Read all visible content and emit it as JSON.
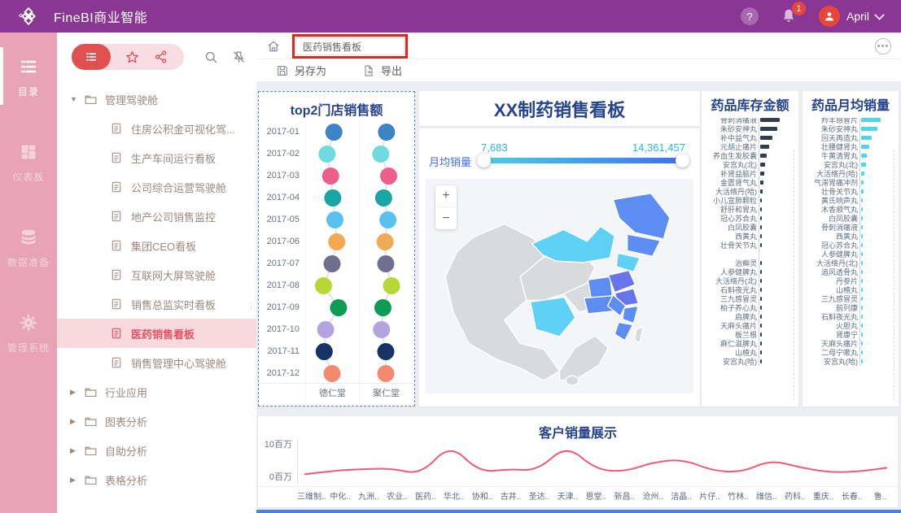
{
  "topbar": {
    "title": "FineBI商业智能",
    "help_label": "?",
    "notification_count": "1",
    "user_name": "April"
  },
  "rail": {
    "items": [
      {
        "label": "目录",
        "icon": "list",
        "active": true
      },
      {
        "label": "仪表板",
        "icon": "grid",
        "active": false
      },
      {
        "label": "数据准备",
        "icon": "db",
        "active": false
      },
      {
        "label": "管理系统",
        "icon": "gear",
        "active": false
      }
    ]
  },
  "tree": {
    "items": [
      {
        "label": "管理驾驶舱",
        "type": "folder",
        "expanded": true,
        "level": 0
      },
      {
        "label": "住房公积金可视化驾...",
        "type": "file",
        "level": 1
      },
      {
        "label": "生产车间运行看板",
        "type": "file",
        "level": 1
      },
      {
        "label": "公司综合运营驾驶舱",
        "type": "file",
        "level": 1
      },
      {
        "label": "地产公司销售监控",
        "type": "file",
        "level": 1
      },
      {
        "label": "集团CEO看板",
        "type": "file",
        "level": 1
      },
      {
        "label": "互联网大屏驾驶舱",
        "type": "file",
        "level": 1
      },
      {
        "label": "销售总监实时看板",
        "type": "file",
        "level": 1
      },
      {
        "label": "医药销售看板",
        "type": "file",
        "level": 1,
        "selected": true
      },
      {
        "label": "销售管理中心驾驶舱",
        "type": "file",
        "level": 1
      },
      {
        "label": "行业应用",
        "type": "folder",
        "expanded": false,
        "level": 0
      },
      {
        "label": "图表分析",
        "type": "folder",
        "expanded": false,
        "level": 0
      },
      {
        "label": "自助分析",
        "type": "folder",
        "expanded": false,
        "level": 0
      },
      {
        "label": "表格分析",
        "type": "folder",
        "expanded": false,
        "level": 0
      }
    ]
  },
  "breadcrumb": {
    "name_value": "医药销售看板"
  },
  "toolbar": {
    "save_as": "另存为",
    "export": "导出"
  },
  "center": {
    "title": "XX制药销售看板",
    "slider": {
      "label": "月均销量",
      "min": "7,683",
      "max": "14,361,457"
    },
    "zoom_in": "+",
    "zoom_out": "−",
    "map": {
      "colors": {
        "none": "#d8dade",
        "low": "#5fd1f7",
        "mid": "#5c8df2",
        "high": "#6774ee",
        "bg": "#f3f5f9"
      }
    }
  },
  "chart_data": [
    {
      "id": "dotplot",
      "type": "scatter",
      "title": "top2门店销售额",
      "categories": [
        "2017-01",
        "2017-02",
        "2017-03",
        "2017-04",
        "2017-05",
        "2017-06",
        "2017-07",
        "2017-08",
        "2017-09",
        "2017-10",
        "2017-11",
        "2017-12"
      ],
      "series": [
        {
          "name": "德仁堂",
          "offsets": [
            0.55,
            0.36,
            0.46,
            0.52,
            0.58,
            0.63,
            0.5,
            0.26,
            0.68,
            0.32,
            0.28,
            0.5
          ]
        },
        {
          "name": "聚仁堂",
          "offsets": [
            0.52,
            0.36,
            0.58,
            0.44,
            0.56,
            0.48,
            0.5,
            0.66,
            0.42,
            0.38,
            0.5,
            0.5
          ]
        }
      ],
      "point_colors": [
        "#3d84c6",
        "#6fdbe0",
        "#ec5f8d",
        "#18a5a5",
        "#59c1ef",
        "#f2a953",
        "#6f6f92",
        "#b8d636",
        "#0d9c55",
        "#b3a3de",
        "#173366",
        "#f28a70"
      ]
    },
    {
      "id": "inventory",
      "type": "bar",
      "orientation": "horizontal",
      "title": "药品库存金额",
      "bar_color": "#2f3e52",
      "categories": [
        "骨刺消痛液",
        "朱砂安神丸",
        "补中益气丸",
        "元胡止痛片",
        "养血生发胶囊",
        "安宫丸(北)",
        "补肾益脑片",
        "金匮肾气丸",
        "大活络丹(哈)",
        "小儿宣肺颗粒",
        "舒肝和胃丸",
        "冠心苏合丸",
        "白凤胶囊",
        "西黄丸",
        "壮骨关节丸",
        "",
        "治癣灵",
        "人参健脾丸",
        "大活络丹(北)",
        "石斛夜光丸",
        "三九感冒灵",
        "柏子养心丸",
        "启脾丸",
        "天麻头痛片",
        "板兰根",
        "麻仁滋脾丸",
        "山楂丸",
        "安宫丸(哈)"
      ],
      "values": [
        100,
        88,
        62,
        45,
        34,
        26,
        20,
        15,
        11,
        9,
        7,
        6,
        5,
        4,
        3,
        0,
        3,
        3,
        2,
        2,
        2,
        2,
        1,
        1,
        1,
        1,
        1,
        1
      ]
    },
    {
      "id": "monthly",
      "type": "bar",
      "orientation": "horizontal",
      "title": "药品月均销量",
      "bar_color": "#4fd6e8",
      "categories": [
        "羚羊感冒片",
        "朱砂安神丸",
        "回天再造丸",
        "壮腰健肾丸",
        "牛黄清胃丸",
        "安宫丸(北)",
        "大活络丹(哈)",
        "气滞胃痛冲剂",
        "壮骨关节丸",
        "黄氏响声丸",
        "木香顺气丸",
        "白凤胶囊",
        "骨刺消痛液",
        "西黄丸",
        "冠心苏合丸",
        "人参健脾丸",
        "大活络丹(北)",
        "追风透骨丸",
        "丹参片",
        "山楂丸",
        "三九感冒灵",
        "前列康",
        "石斛夜光丸",
        "火胆丸",
        "肾康宁",
        "天麻头痛片",
        "二母宁嗽丸",
        "安宫丸(哈)"
      ],
      "values": [
        100,
        85,
        55,
        40,
        30,
        24,
        18,
        14,
        11,
        9,
        7,
        6,
        5,
        4,
        3,
        3,
        2,
        2,
        2,
        2,
        1,
        1,
        1,
        1,
        1,
        1,
        1,
        1
      ]
    },
    {
      "id": "customers",
      "type": "line",
      "title": "客户销量展示",
      "line_color": "#ee5b76",
      "categories": [
        "三维制..",
        "中化..",
        "九洲..",
        "农业..",
        "医药..",
        "华北..",
        "协和..",
        "古井..",
        "圣达..",
        "天津..",
        "恩堂..",
        "新昌..",
        "沧州..",
        "洁晶..",
        "片仔..",
        "竹林..",
        "维信..",
        "药科..",
        "重庆..",
        "长春..",
        "鲁.."
      ],
      "values": [
        0.4,
        1.5,
        2.0,
        2.2,
        0.3,
        9.8,
        1.0,
        2.0,
        1.5,
        9.5,
        1.8,
        1.2,
        4.2,
        5.0,
        1.5,
        1.0,
        4.8,
        2.5,
        1.0,
        1.2,
        2.4
      ],
      "ylim": [
        -3,
        11
      ],
      "yticks": [
        {
          "v": 10,
          "label": "10百万"
        },
        {
          "v": 0,
          "label": "0百万"
        }
      ]
    }
  ]
}
